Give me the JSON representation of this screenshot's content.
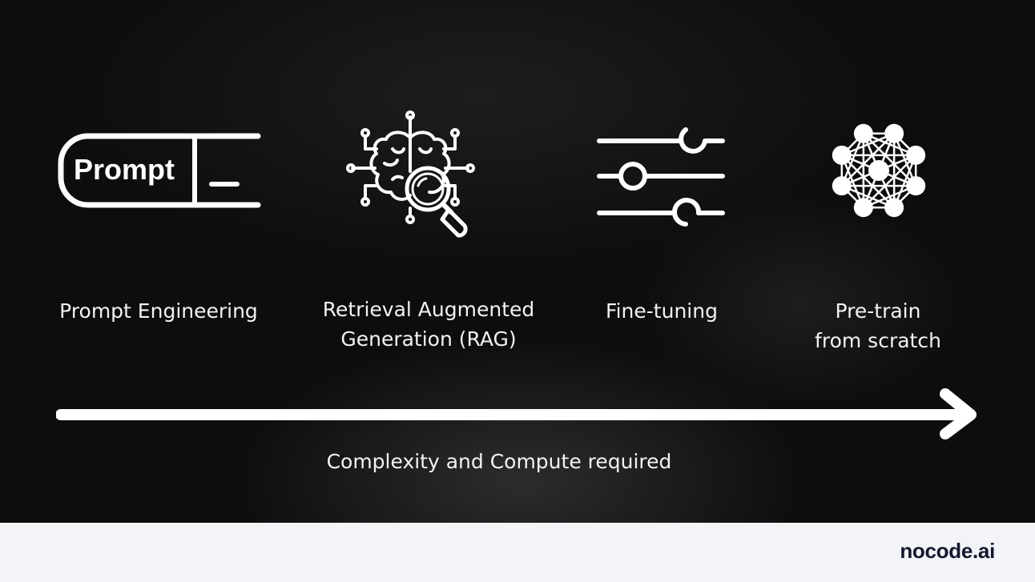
{
  "stages": [
    {
      "icon": "prompt-input-icon",
      "icon_text": "Prompt",
      "label_lines": [
        "Prompt Engineering"
      ]
    },
    {
      "icon": "brain-magnifier-icon",
      "label_lines": [
        "Retrieval Augmented",
        "Generation (RAG)"
      ]
    },
    {
      "icon": "sliders-icon",
      "label_lines": [
        "Fine-tuning"
      ]
    },
    {
      "icon": "neural-network-icon",
      "label_lines": [
        "Pre-train",
        "from scratch"
      ]
    }
  ],
  "axis": {
    "caption": "Complexity and Compute required",
    "icon": "arrow-right-icon"
  },
  "footer": {
    "brand": "nocode.ai"
  },
  "colors": {
    "background": "#0d0d0d",
    "foreground": "#ffffff",
    "footer_background": "#f3f4f8",
    "brand": "#14182e"
  }
}
